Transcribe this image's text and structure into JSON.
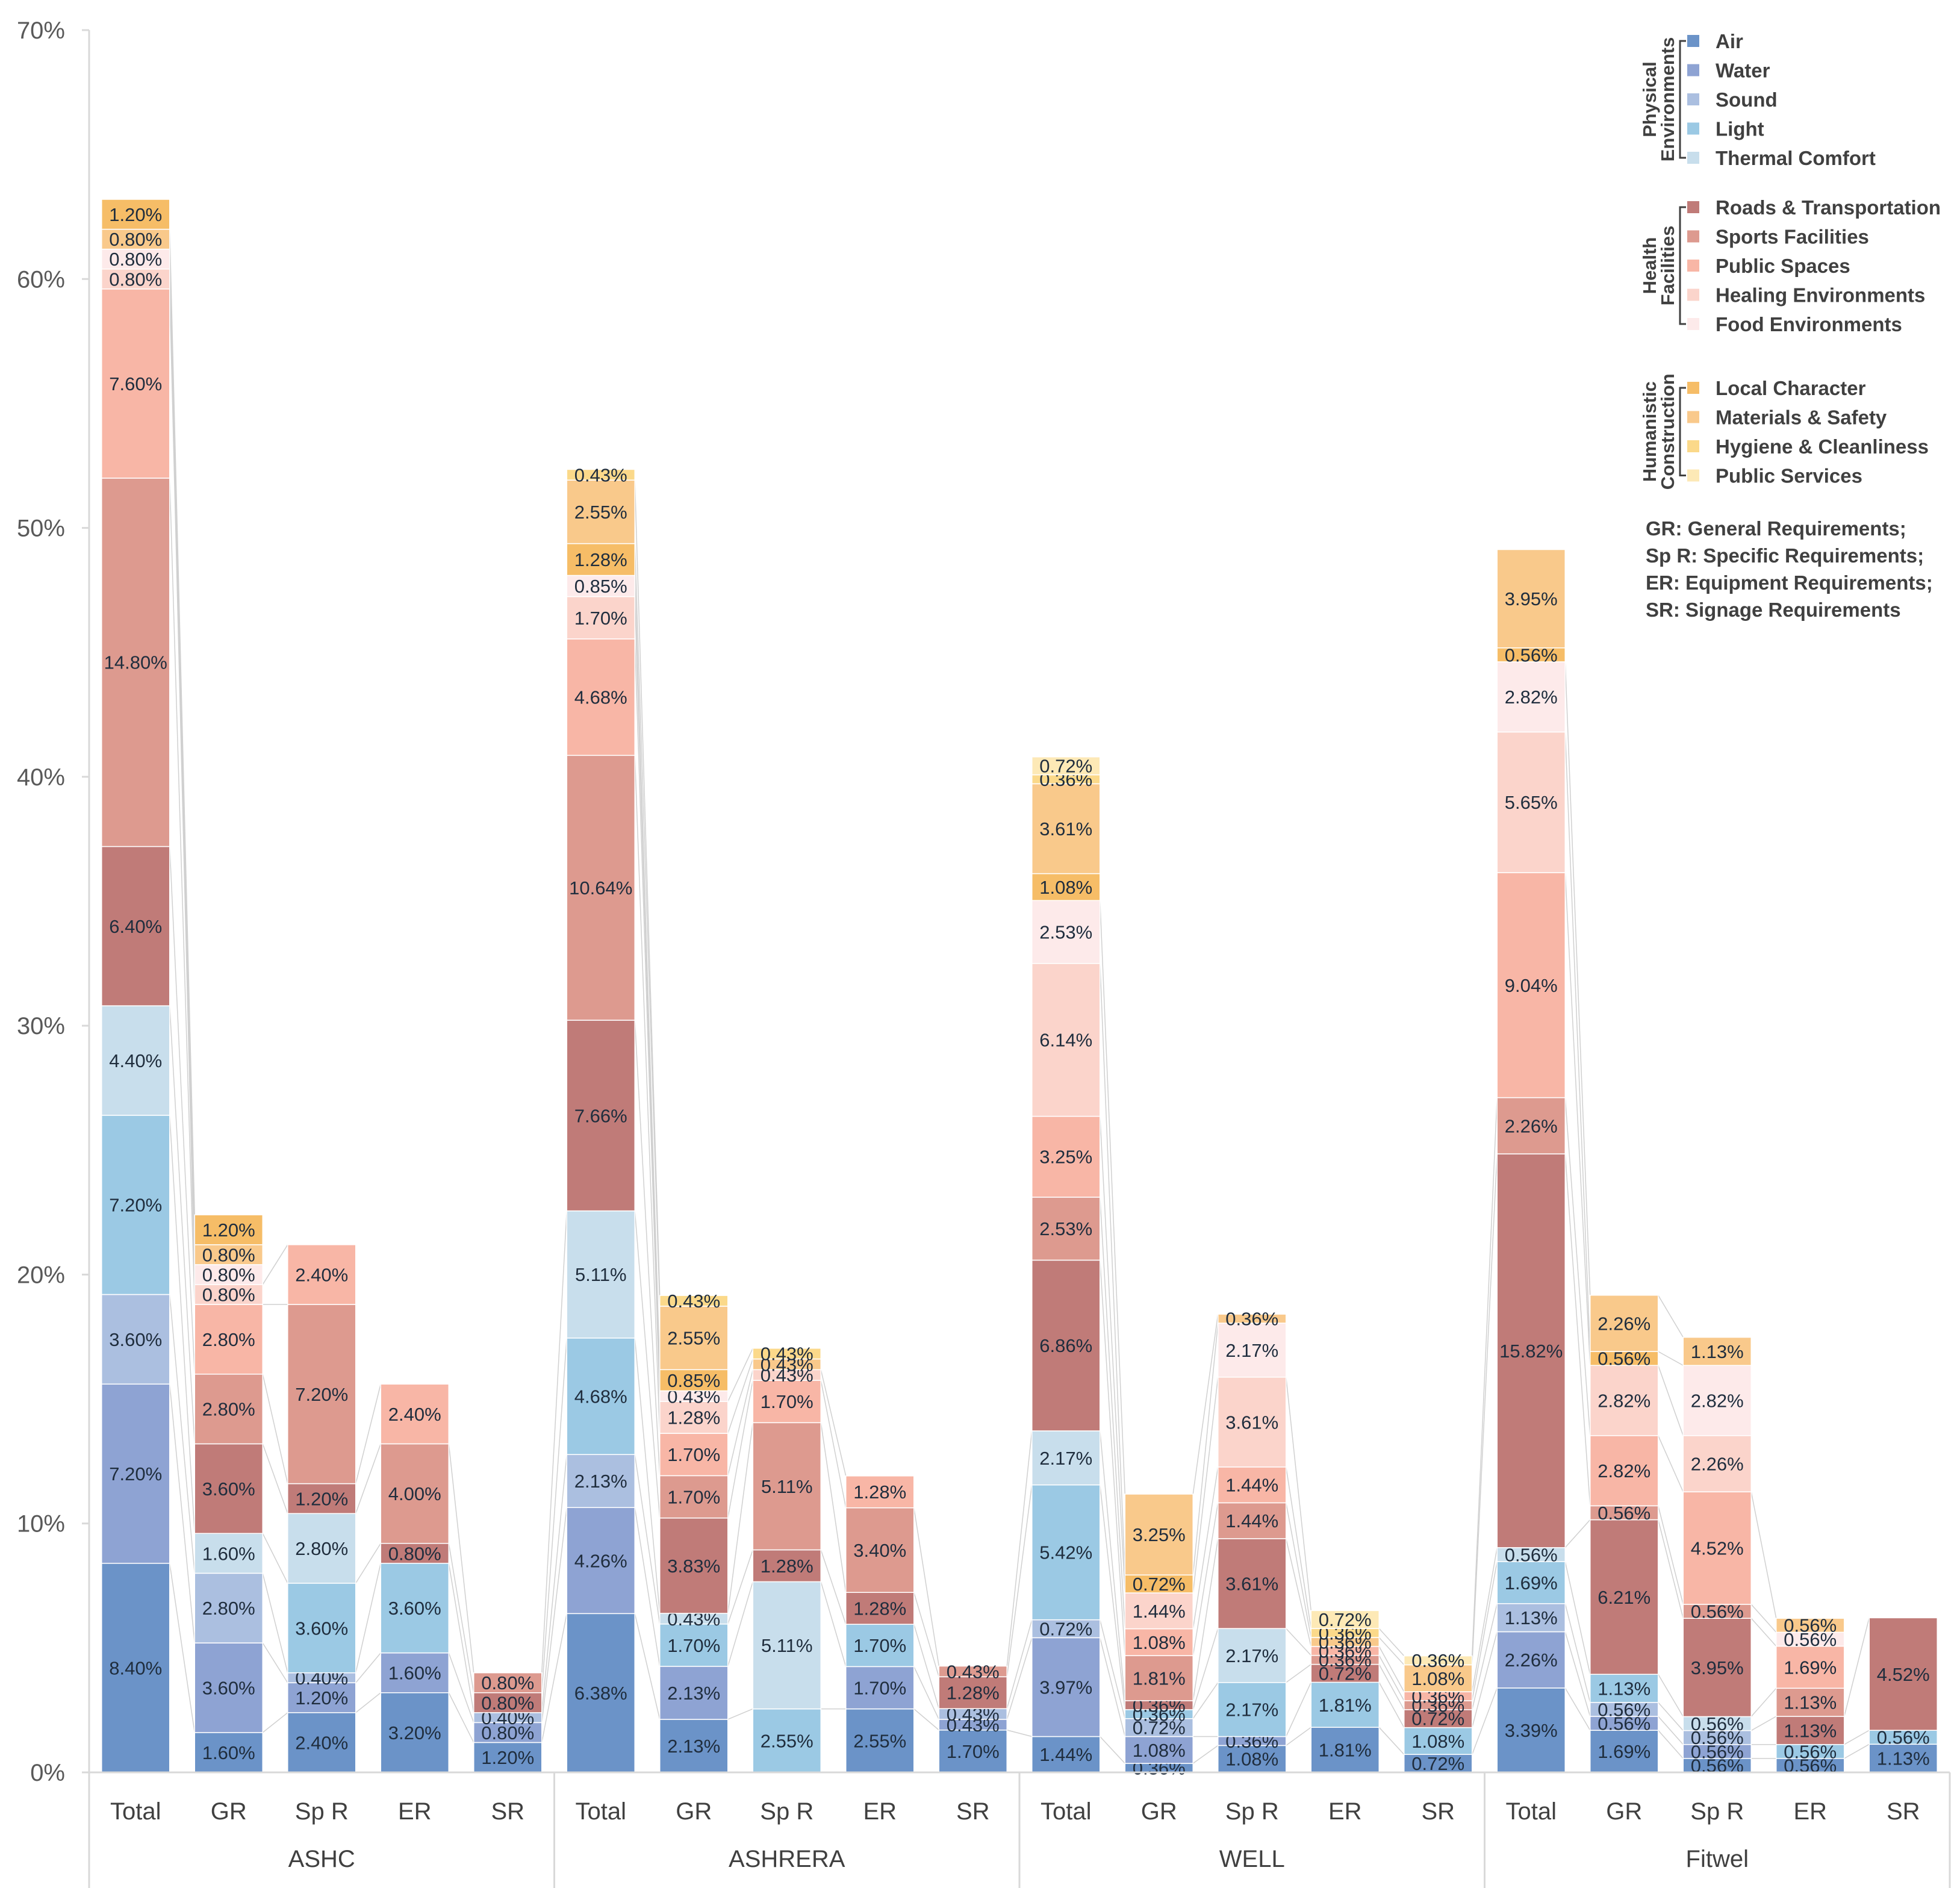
{
  "chart_data": {
    "type": "bar",
    "stacked": true,
    "title": "",
    "xlabel": "",
    "ylabel": "",
    "ylim": [
      0,
      70
    ],
    "yticks": [
      "0%",
      "10%",
      "20%",
      "30%",
      "40%",
      "50%",
      "60%",
      "70%"
    ],
    "ytick_values": [
      0,
      10,
      20,
      30,
      40,
      50,
      60,
      70
    ],
    "groups": [
      {
        "label": "ASHC",
        "categories": [
          "Total",
          "GR",
          "Sp R",
          "ER",
          "SR"
        ]
      },
      {
        "label": "ASHRERA",
        "categories": [
          "Total",
          "GR",
          "Sp R",
          "ER",
          "SR"
        ]
      },
      {
        "label": "WELL",
        "categories": [
          "Total",
          "GR",
          "Sp R",
          "ER",
          "SR"
        ]
      },
      {
        "label": "Fitwel",
        "categories": [
          "Total",
          "GR",
          "Sp R",
          "ER",
          "SR"
        ]
      }
    ],
    "series": [
      {
        "name": "Air",
        "color": "#6b93c8"
      },
      {
        "name": "Water",
        "color": "#8ea3d3"
      },
      {
        "name": "Sound",
        "color": "#abbfe0"
      },
      {
        "name": "Light",
        "color": "#9bc9e4"
      },
      {
        "name": "Thermal Comfort",
        "color": "#c8deec"
      },
      {
        "name": "Roads & Transportation",
        "color": "#c07b78"
      },
      {
        "name": "Sports Facilities",
        "color": "#dd9a8f"
      },
      {
        "name": "Public Spaces",
        "color": "#f8b6a6"
      },
      {
        "name": "Healing Environments",
        "color": "#fbd4cb"
      },
      {
        "name": "Food Environments",
        "color": "#fdeaea"
      },
      {
        "name": "Local Character",
        "color": "#f6bd67"
      },
      {
        "name": "Materials & Safety",
        "color": "#f9c98b"
      },
      {
        "name": "Hygiene & Cleanliness",
        "color": "#fbd98a"
      },
      {
        "name": "Public Services",
        "color": "#fde9b6"
      }
    ],
    "bars": [
      [
        [
          0,
          8.4,
          "8.40%"
        ],
        [
          1,
          7.2,
          "7.20%"
        ],
        [
          2,
          3.6,
          "3.60%"
        ],
        [
          3,
          7.2,
          "7.20%"
        ],
        [
          4,
          4.4,
          "4.40%"
        ],
        [
          5,
          6.4,
          "6.40%"
        ],
        [
          6,
          14.8,
          "14.80%"
        ],
        [
          7,
          7.6,
          "7.60%"
        ],
        [
          8,
          0.8,
          "0.80%"
        ],
        [
          9,
          0.8,
          "0.80%"
        ],
        [
          11,
          0.8,
          "0.80%"
        ],
        [
          10,
          1.2,
          "1.20%"
        ]
      ],
      [
        [
          0,
          1.6,
          "1.60%"
        ],
        [
          1,
          3.6,
          "3.60%"
        ],
        [
          2,
          2.8,
          "2.80%"
        ],
        [
          4,
          1.6,
          "1.60%"
        ],
        [
          5,
          3.6,
          "3.60%"
        ],
        [
          6,
          2.8,
          "2.80%"
        ],
        [
          7,
          2.8,
          "2.80%"
        ],
        [
          8,
          0.8,
          "0.80%"
        ],
        [
          9,
          0.8,
          "0.80%"
        ],
        [
          11,
          0.8,
          "0.80%"
        ],
        [
          10,
          1.2,
          "1.20%"
        ]
      ],
      [
        [
          0,
          2.4,
          "2.40%"
        ],
        [
          1,
          1.2,
          "1.20%"
        ],
        [
          2,
          0.4,
          "0.40%"
        ],
        [
          3,
          3.6,
          "3.60%"
        ],
        [
          4,
          2.8,
          "2.80%"
        ],
        [
          5,
          1.2,
          "1.20%"
        ],
        [
          6,
          7.2,
          "7.20%"
        ],
        [
          7,
          2.4,
          "2.40%"
        ]
      ],
      [
        [
          0,
          3.2,
          "3.20%"
        ],
        [
          1,
          1.6,
          "1.60%"
        ],
        [
          3,
          3.6,
          "3.60%"
        ],
        [
          5,
          0.8,
          "0.80%"
        ],
        [
          6,
          4.0,
          "4.00%"
        ],
        [
          7,
          2.4,
          "2.40%"
        ]
      ],
      [
        [
          0,
          1.2,
          "1.20%"
        ],
        [
          1,
          0.8,
          "0.80%"
        ],
        [
          2,
          0.4,
          "0.40%"
        ],
        [
          5,
          0.8,
          "0.80%"
        ],
        [
          6,
          0.8,
          "0.80%"
        ]
      ],
      [
        [
          0,
          6.38,
          "6.38%"
        ],
        [
          1,
          4.26,
          "4.26%"
        ],
        [
          2,
          2.13,
          "2.13%"
        ],
        [
          3,
          4.68,
          "4.68%"
        ],
        [
          4,
          5.11,
          "5.11%"
        ],
        [
          5,
          7.66,
          "7.66%"
        ],
        [
          6,
          10.64,
          "10.64%"
        ],
        [
          7,
          4.68,
          "4.68%"
        ],
        [
          8,
          1.7,
          "1.70%"
        ],
        [
          9,
          0.85,
          "0.85%"
        ],
        [
          10,
          1.28,
          "1.28%"
        ],
        [
          11,
          2.55,
          "2.55%"
        ],
        [
          12,
          0.43,
          "0.43%"
        ]
      ],
      [
        [
          0,
          2.13,
          "2.13%"
        ],
        [
          1,
          2.13,
          "2.13%"
        ],
        [
          3,
          1.7,
          "1.70%"
        ],
        [
          4,
          0.43,
          "0.43%"
        ],
        [
          5,
          3.83,
          "3.83%"
        ],
        [
          6,
          1.7,
          "1.70%"
        ],
        [
          7,
          1.7,
          "1.70%"
        ],
        [
          8,
          1.28,
          "1.28%"
        ],
        [
          9,
          0.43,
          "0.43%"
        ],
        [
          10,
          0.85,
          "0.85%"
        ],
        [
          11,
          2.55,
          "2.55%"
        ],
        [
          12,
          0.43,
          "0.43%"
        ]
      ],
      [
        [
          3,
          2.55,
          "2.55%"
        ],
        [
          4,
          5.11,
          "5.11%"
        ],
        [
          5,
          1.28,
          "1.28%"
        ],
        [
          6,
          5.11,
          "5.11%"
        ],
        [
          7,
          1.7,
          "1.70%"
        ],
        [
          8,
          0.43,
          "0.43%"
        ],
        [
          11,
          0.43,
          "0.43%"
        ],
        [
          12,
          0.43,
          "0.43%"
        ]
      ],
      [
        [
          0,
          2.55,
          "2.55%"
        ],
        [
          1,
          1.7,
          "1.70%"
        ],
        [
          3,
          1.7,
          "1.70%"
        ],
        [
          5,
          1.28,
          "1.28%"
        ],
        [
          6,
          3.4,
          "3.40%"
        ],
        [
          7,
          1.28,
          "1.28%"
        ]
      ],
      [
        [
          0,
          1.7,
          "1.70%"
        ],
        [
          1,
          0.43,
          "0.43%"
        ],
        [
          2,
          0.43,
          "0.43%"
        ],
        [
          5,
          1.28,
          "1.28%"
        ],
        [
          6,
          0.43,
          "0.43%"
        ]
      ],
      [
        [
          0,
          1.44,
          "1.44%"
        ],
        [
          1,
          3.97,
          "3.97%"
        ],
        [
          2,
          0.72,
          "0.72%"
        ],
        [
          3,
          5.42,
          "5.42%"
        ],
        [
          4,
          2.17,
          "2.17%"
        ],
        [
          5,
          6.86,
          "6.86%"
        ],
        [
          6,
          2.53,
          "2.53%"
        ],
        [
          7,
          3.25,
          "3.25%"
        ],
        [
          8,
          6.14,
          "6.14%"
        ],
        [
          9,
          2.53,
          "2.53%"
        ],
        [
          10,
          1.08,
          "1.08%"
        ],
        [
          11,
          3.61,
          "3.61%"
        ],
        [
          12,
          0.36,
          "0.36%"
        ],
        [
          13,
          0.72,
          "0.72%"
        ]
      ],
      [
        [
          0,
          0.36,
          "0.36%"
        ],
        [
          1,
          1.08,
          "1.08%"
        ],
        [
          2,
          0.72,
          "0.72%"
        ],
        [
          3,
          0.36,
          "0.36%"
        ],
        [
          5,
          0.36,
          "0.36%"
        ],
        [
          6,
          1.81,
          "1.81%"
        ],
        [
          7,
          1.08,
          "1.08%"
        ],
        [
          8,
          1.44,
          "1.44%"
        ],
        [
          10,
          0.72,
          "0.72%"
        ],
        [
          11,
          3.25,
          "3.25%"
        ]
      ],
      [
        [
          0,
          1.08,
          "1.08%"
        ],
        [
          1,
          0.36,
          "0.36%"
        ],
        [
          3,
          2.17,
          "2.17%"
        ],
        [
          4,
          2.17,
          "2.17%"
        ],
        [
          5,
          3.61,
          "3.61%"
        ],
        [
          6,
          1.44,
          "1.44%"
        ],
        [
          7,
          1.44,
          "1.44%"
        ],
        [
          8,
          3.61,
          "3.61%"
        ],
        [
          9,
          2.17,
          "2.17%"
        ],
        [
          11,
          0.36,
          "0.36%"
        ]
      ],
      [
        [
          0,
          1.81,
          "1.81%"
        ],
        [
          3,
          1.81,
          "1.81%"
        ],
        [
          5,
          0.72,
          "0.72%"
        ],
        [
          6,
          0.36,
          "0.36%"
        ],
        [
          7,
          0.36,
          "0.36%"
        ],
        [
          11,
          0.36,
          "0.36%"
        ],
        [
          12,
          0.36,
          "0.36%"
        ],
        [
          13,
          0.72,
          "0.72%"
        ]
      ],
      [
        [
          0,
          0.72,
          "0.72%"
        ],
        [
          3,
          1.08,
          "1.08%"
        ],
        [
          5,
          0.72,
          "0.72%"
        ],
        [
          6,
          0.36,
          "0.36%"
        ],
        [
          7,
          0.36,
          "0.36%"
        ],
        [
          11,
          1.08,
          "1.08%"
        ],
        [
          13,
          0.36,
          "0.36%"
        ]
      ],
      [
        [
          0,
          3.39,
          "3.39%"
        ],
        [
          1,
          2.26,
          "2.26%"
        ],
        [
          2,
          1.13,
          "1.13%"
        ],
        [
          3,
          1.69,
          "1.69%"
        ],
        [
          4,
          0.56,
          "0.56%"
        ],
        [
          5,
          15.82,
          "15.82%"
        ],
        [
          6,
          2.26,
          "2.26%"
        ],
        [
          7,
          9.04,
          "9.04%"
        ],
        [
          8,
          5.65,
          "5.65%"
        ],
        [
          9,
          2.82,
          "2.82%"
        ],
        [
          10,
          0.56,
          "0.56%"
        ],
        [
          11,
          3.95,
          "3.95%"
        ]
      ],
      [
        [
          0,
          1.69,
          "1.69%"
        ],
        [
          1,
          0.56,
          "0.56%"
        ],
        [
          2,
          0.56,
          "0.56%"
        ],
        [
          3,
          1.13,
          "1.13%"
        ],
        [
          5,
          6.21,
          "6.21%"
        ],
        [
          6,
          0.56,
          "0.56%"
        ],
        [
          7,
          2.82,
          "2.82%"
        ],
        [
          8,
          2.82,
          "2.82%"
        ],
        [
          10,
          0.56,
          "0.56%"
        ],
        [
          11,
          2.26,
          "2.26%"
        ]
      ],
      [
        [
          0,
          0.56,
          "0.56%"
        ],
        [
          1,
          0.56,
          "0.56%"
        ],
        [
          2,
          0.56,
          "0.56%"
        ],
        [
          4,
          0.56,
          "0.56%"
        ],
        [
          5,
          3.95,
          "3.95%"
        ],
        [
          6,
          0.56,
          "0.56%"
        ],
        [
          7,
          4.52,
          "4.52%"
        ],
        [
          8,
          2.26,
          "2.26%"
        ],
        [
          9,
          2.82,
          "2.82%"
        ],
        [
          11,
          1.13,
          "1.13%"
        ]
      ],
      [
        [
          0,
          0.56,
          "0.56%"
        ],
        [
          3,
          0.56,
          "0.56%"
        ],
        [
          5,
          1.13,
          "1.13%"
        ],
        [
          6,
          1.13,
          "1.13%"
        ],
        [
          7,
          1.69,
          "1.69%"
        ],
        [
          9,
          0.56,
          "0.56%"
        ],
        [
          11,
          0.56,
          "0.56%"
        ]
      ],
      [
        [
          0,
          1.13,
          "1.13%"
        ],
        [
          3,
          0.56,
          "0.56%"
        ],
        [
          5,
          4.52,
          "4.52%"
        ]
      ]
    ],
    "legend": {
      "position": "top-right",
      "groups": [
        {
          "label_lines": [
            "Physical",
            "Environments"
          ],
          "series": [
            "Air",
            "Water",
            "Sound",
            "Light",
            "Thermal Comfort"
          ]
        },
        {
          "label_lines": [
            "Health",
            "Facilities"
          ],
          "series": [
            "Roads & Transportation",
            "Sports Facilities",
            "Public Spaces",
            "Healing Environments",
            "Food Environments"
          ]
        },
        {
          "label_lines": [
            "Humanistic",
            "Construction"
          ],
          "series": [
            "Local Character",
            "Materials & Safety",
            "Hygiene & Cleanliness",
            "Public Services"
          ]
        }
      ]
    },
    "notes": [
      "GR: General Requirements;",
      "Sp R: Specific Requirements;",
      "ER: Equipment Requirements;",
      "SR: Signage Requirements"
    ],
    "grid": false,
    "connector_lines": true
  }
}
